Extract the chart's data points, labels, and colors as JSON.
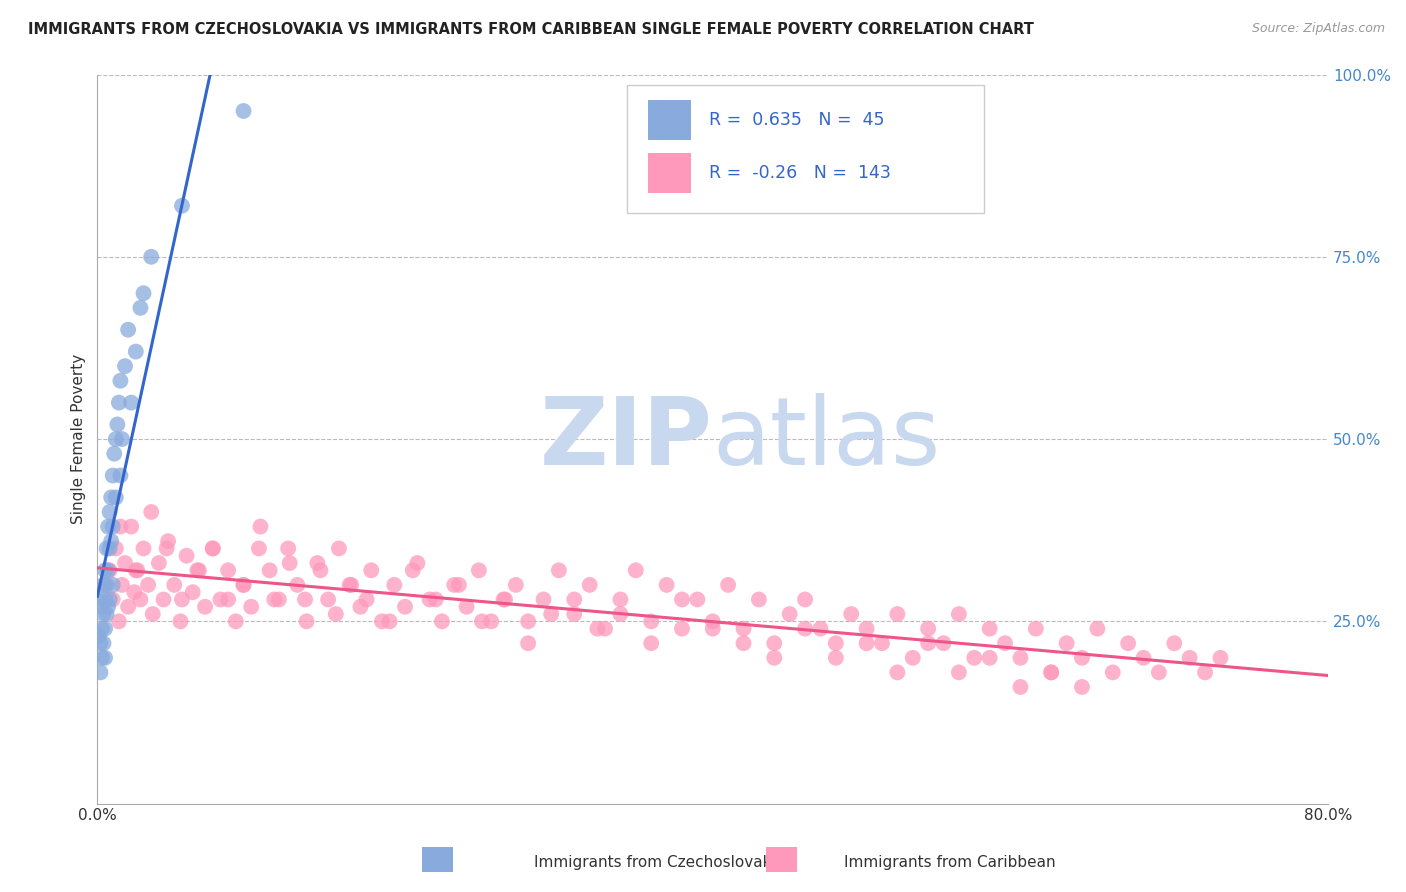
{
  "title": "IMMIGRANTS FROM CZECHOSLOVAKIA VS IMMIGRANTS FROM CARIBBEAN SINGLE FEMALE POVERTY CORRELATION CHART",
  "source": "Source: ZipAtlas.com",
  "ylabel": "Single Female Poverty",
  "legend_label1": "Immigrants from Czechoslovakia",
  "legend_label2": "Immigrants from Caribbean",
  "R1": 0.635,
  "N1": 45,
  "R2": -0.26,
  "N2": 143,
  "color1": "#88AADD",
  "color2": "#FF99BB",
  "trendline1_color": "#3366CC",
  "trendline2_color": "#EE5588",
  "watermark_zip": "ZIP",
  "watermark_atlas": "atlas",
  "watermark_color_zip": "#C8D8EE",
  "watermark_color_atlas": "#C8D8EE",
  "xlim": [
    0.0,
    0.8
  ],
  "ylim": [
    0.0,
    1.0
  ],
  "yticks": [
    0.0,
    0.25,
    0.5,
    0.75,
    1.0
  ],
  "ytick_labels": [
    "",
    "25.0%",
    "50.0%",
    "75.0%",
    "100.0%"
  ],
  "xticks": [
    0.0,
    0.2,
    0.4,
    0.6,
    0.8
  ],
  "xtick_labels": [
    "0.0%",
    "",
    "",
    "",
    "80.0%"
  ],
  "background_color": "#FFFFFF",
  "czech_x": [
    0.001,
    0.001,
    0.002,
    0.002,
    0.003,
    0.003,
    0.003,
    0.004,
    0.004,
    0.004,
    0.005,
    0.005,
    0.005,
    0.005,
    0.006,
    0.006,
    0.006,
    0.007,
    0.007,
    0.007,
    0.008,
    0.008,
    0.008,
    0.009,
    0.009,
    0.01,
    0.01,
    0.01,
    0.011,
    0.012,
    0.012,
    0.013,
    0.014,
    0.015,
    0.015,
    0.016,
    0.018,
    0.02,
    0.022,
    0.025,
    0.028,
    0.03,
    0.035,
    0.055,
    0.095
  ],
  "czech_y": [
    0.28,
    0.23,
    0.22,
    0.18,
    0.27,
    0.24,
    0.2,
    0.3,
    0.26,
    0.22,
    0.32,
    0.28,
    0.24,
    0.2,
    0.35,
    0.3,
    0.26,
    0.38,
    0.32,
    0.27,
    0.4,
    0.35,
    0.28,
    0.42,
    0.36,
    0.45,
    0.38,
    0.3,
    0.48,
    0.5,
    0.42,
    0.52,
    0.55,
    0.58,
    0.45,
    0.5,
    0.6,
    0.65,
    0.55,
    0.62,
    0.68,
    0.7,
    0.75,
    0.82,
    0.95
  ],
  "carib_x": [
    0.005,
    0.008,
    0.01,
    0.012,
    0.014,
    0.016,
    0.018,
    0.02,
    0.022,
    0.024,
    0.026,
    0.028,
    0.03,
    0.033,
    0.036,
    0.04,
    0.043,
    0.046,
    0.05,
    0.054,
    0.058,
    0.062,
    0.066,
    0.07,
    0.075,
    0.08,
    0.085,
    0.09,
    0.095,
    0.1,
    0.106,
    0.112,
    0.118,
    0.124,
    0.13,
    0.136,
    0.143,
    0.15,
    0.157,
    0.164,
    0.171,
    0.178,
    0.185,
    0.193,
    0.2,
    0.208,
    0.216,
    0.224,
    0.232,
    0.24,
    0.248,
    0.256,
    0.264,
    0.272,
    0.28,
    0.29,
    0.3,
    0.31,
    0.32,
    0.33,
    0.34,
    0.35,
    0.36,
    0.37,
    0.38,
    0.39,
    0.4,
    0.41,
    0.42,
    0.43,
    0.44,
    0.45,
    0.46,
    0.47,
    0.48,
    0.49,
    0.5,
    0.51,
    0.52,
    0.53,
    0.54,
    0.55,
    0.56,
    0.57,
    0.58,
    0.59,
    0.6,
    0.61,
    0.62,
    0.63,
    0.64,
    0.65,
    0.66,
    0.67,
    0.68,
    0.69,
    0.7,
    0.71,
    0.72,
    0.73,
    0.015,
    0.025,
    0.035,
    0.045,
    0.055,
    0.065,
    0.075,
    0.085,
    0.095,
    0.105,
    0.115,
    0.125,
    0.135,
    0.145,
    0.155,
    0.165,
    0.175,
    0.19,
    0.205,
    0.22,
    0.235,
    0.25,
    0.265,
    0.28,
    0.295,
    0.31,
    0.325,
    0.34,
    0.36,
    0.38,
    0.4,
    0.42,
    0.44,
    0.46,
    0.48,
    0.5,
    0.52,
    0.54,
    0.56,
    0.58,
    0.6,
    0.62,
    0.64
  ],
  "carib_y": [
    0.3,
    0.32,
    0.28,
    0.35,
    0.25,
    0.3,
    0.33,
    0.27,
    0.38,
    0.29,
    0.32,
    0.28,
    0.35,
    0.3,
    0.26,
    0.33,
    0.28,
    0.36,
    0.3,
    0.25,
    0.34,
    0.29,
    0.32,
    0.27,
    0.35,
    0.28,
    0.32,
    0.25,
    0.3,
    0.27,
    0.38,
    0.32,
    0.28,
    0.35,
    0.3,
    0.25,
    0.33,
    0.28,
    0.35,
    0.3,
    0.27,
    0.32,
    0.25,
    0.3,
    0.27,
    0.33,
    0.28,
    0.25,
    0.3,
    0.27,
    0.32,
    0.25,
    0.28,
    0.3,
    0.25,
    0.28,
    0.32,
    0.26,
    0.3,
    0.24,
    0.28,
    0.32,
    0.25,
    0.3,
    0.24,
    0.28,
    0.25,
    0.3,
    0.24,
    0.28,
    0.22,
    0.26,
    0.28,
    0.24,
    0.22,
    0.26,
    0.24,
    0.22,
    0.26,
    0.2,
    0.24,
    0.22,
    0.26,
    0.2,
    0.24,
    0.22,
    0.2,
    0.24,
    0.18,
    0.22,
    0.2,
    0.24,
    0.18,
    0.22,
    0.2,
    0.18,
    0.22,
    0.2,
    0.18,
    0.2,
    0.38,
    0.32,
    0.4,
    0.35,
    0.28,
    0.32,
    0.35,
    0.28,
    0.3,
    0.35,
    0.28,
    0.33,
    0.28,
    0.32,
    0.26,
    0.3,
    0.28,
    0.25,
    0.32,
    0.28,
    0.3,
    0.25,
    0.28,
    0.22,
    0.26,
    0.28,
    0.24,
    0.26,
    0.22,
    0.28,
    0.24,
    0.22,
    0.2,
    0.24,
    0.2,
    0.22,
    0.18,
    0.22,
    0.18,
    0.2,
    0.16,
    0.18,
    0.16
  ]
}
